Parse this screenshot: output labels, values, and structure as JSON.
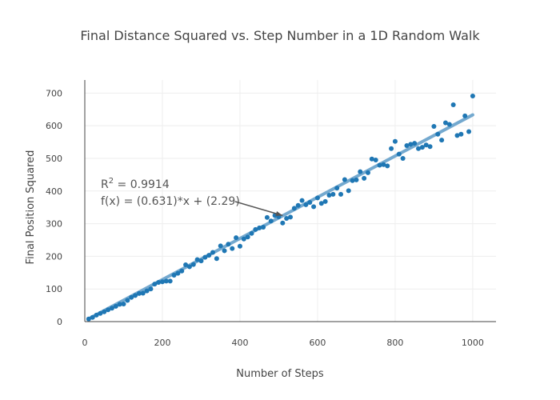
{
  "chart_data": {
    "type": "scatter",
    "title": "Final Distance Squared vs. Step Number in a 1D Random Walk",
    "xlabel": "Number of Steps",
    "ylabel": "Final Position Squared",
    "xlim": [
      0,
      1060
    ],
    "ylim": [
      0,
      740
    ],
    "xticks": [
      0,
      200,
      400,
      600,
      800,
      1000
    ],
    "yticks": [
      0,
      100,
      200,
      300,
      400,
      500,
      600,
      700
    ],
    "grid": true,
    "points": {
      "x": [
        10,
        20,
        30,
        40,
        50,
        60,
        70,
        80,
        90,
        100,
        110,
        120,
        130,
        140,
        150,
        160,
        170,
        180,
        190,
        200,
        210,
        220,
        230,
        240,
        250,
        260,
        270,
        280,
        290,
        300,
        310,
        320,
        330,
        340,
        350,
        360,
        370,
        380,
        390,
        400,
        410,
        420,
        430,
        440,
        450,
        460,
        470,
        480,
        490,
        500,
        510,
        520,
        530,
        540,
        550,
        560,
        570,
        580,
        590,
        600,
        610,
        620,
        630,
        640,
        650,
        660,
        670,
        680,
        690,
        700,
        710,
        720,
        730,
        740,
        750,
        760,
        770,
        780,
        790,
        800,
        810,
        820,
        830,
        840,
        850,
        860,
        870,
        880,
        890,
        900,
        910,
        920,
        930,
        940,
        950,
        960,
        970,
        980,
        990,
        1000
      ],
      "y": [
        8,
        13,
        20,
        25,
        30,
        36,
        41,
        47,
        53,
        54,
        65,
        74,
        80,
        86,
        87,
        94,
        100,
        115,
        120,
        122,
        124,
        124,
        142,
        148,
        155,
        174,
        168,
        175,
        190,
        186,
        197,
        203,
        212,
        193,
        232,
        217,
        237,
        224,
        257,
        231,
        253,
        259,
        270,
        282,
        287,
        289,
        319,
        308,
        325,
        321,
        302,
        316,
        320,
        347,
        356,
        371,
        358,
        365,
        352,
        379,
        362,
        368,
        387,
        390,
        409,
        390,
        435,
        401,
        432,
        434,
        459,
        439,
        456,
        498,
        495,
        479,
        481,
        477,
        530,
        552,
        513,
        500,
        539,
        543,
        546,
        530,
        534,
        541,
        536,
        598,
        574,
        556,
        609,
        604,
        664,
        570,
        574,
        630,
        582,
        691
      ]
    },
    "fit": {
      "slope": 0.631,
      "intercept": 2.29,
      "x_range": [
        10,
        1000
      ]
    },
    "annotation": {
      "r2_base": "R",
      "r2_sup": "2",
      "r2_rest": " = 0.9914",
      "equation": "f(x) = (0.631)*x + (2.29)",
      "arrow_to": [
        510,
        325
      ]
    },
    "colors": {
      "points": "#1f77b4",
      "fit": "#74a9cf",
      "annotation": "#555555",
      "grid": "#eeeeee",
      "axis": "#444444"
    }
  }
}
